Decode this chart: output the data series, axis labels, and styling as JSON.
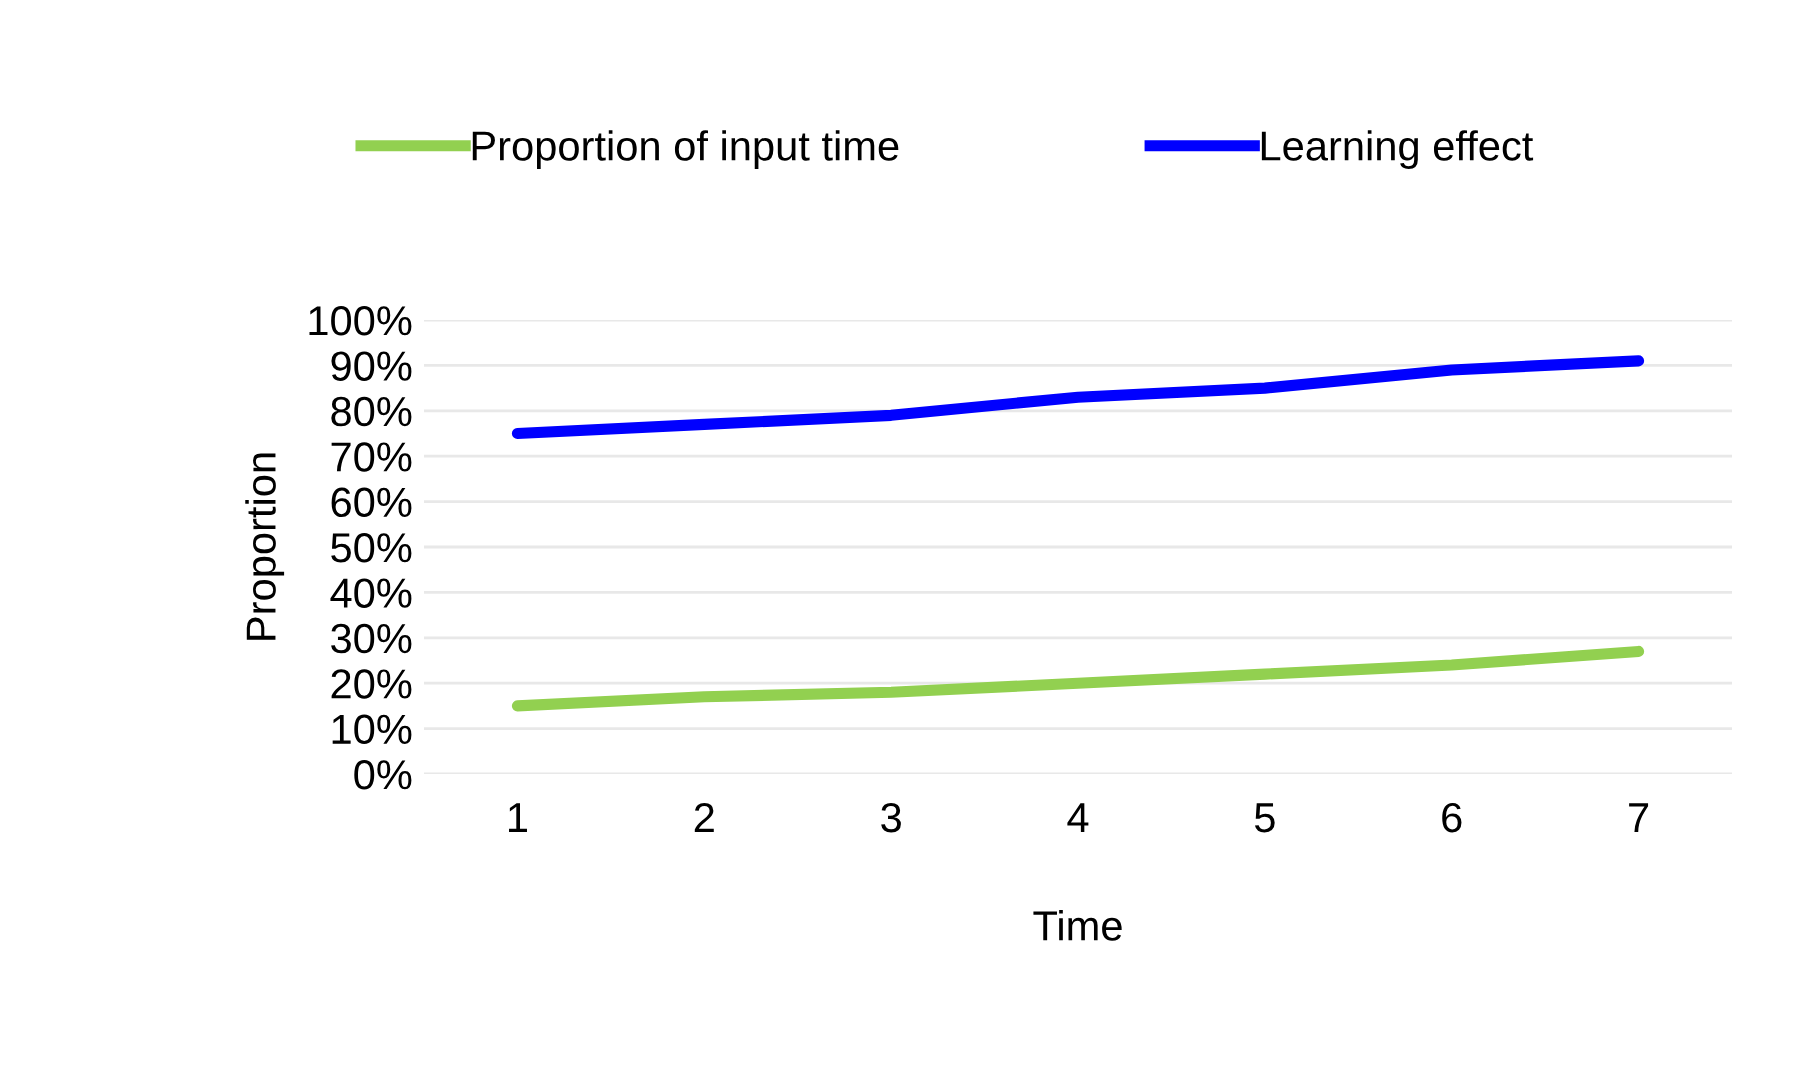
{
  "chart_data": {
    "type": "line",
    "xlabel": "Time",
    "ylabel": "Proportion",
    "categories": [
      "1",
      "2",
      "3",
      "4",
      "5",
      "6",
      "7"
    ],
    "series": [
      {
        "name": "Proportion of input time",
        "color": "#92d050",
        "values": [
          15,
          17,
          18,
          20,
          22,
          24,
          27
        ]
      },
      {
        "name": "Learning effect",
        "color": "#0000ff",
        "values": [
          75,
          77,
          79,
          83,
          85,
          89,
          91
        ]
      }
    ],
    "ylim": [
      0,
      100
    ],
    "yticks": [
      {
        "value": 0,
        "label": "0%"
      },
      {
        "value": 10,
        "label": "10%"
      },
      {
        "value": 20,
        "label": "20%"
      },
      {
        "value": 30,
        "label": "30%"
      },
      {
        "value": 40,
        "label": "40%"
      },
      {
        "value": 50,
        "label": "50%"
      },
      {
        "value": 60,
        "label": "60%"
      },
      {
        "value": 70,
        "label": "70%"
      },
      {
        "value": 80,
        "label": "80%"
      },
      {
        "value": 90,
        "label": "90%"
      },
      {
        "value": 100,
        "label": "100%"
      }
    ],
    "grid": "y",
    "legend": "top",
    "marker": "none",
    "line_style": "solid"
  }
}
